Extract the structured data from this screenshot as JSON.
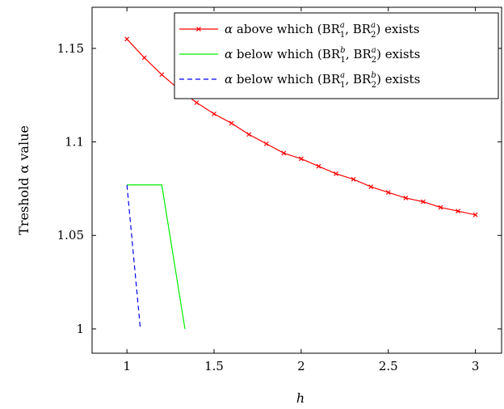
{
  "chart_data": {
    "type": "line",
    "xlabel": "h",
    "ylabel": "Treshold α value",
    "xlim": [
      0.8,
      3.15
    ],
    "ylim": [
      0.987,
      1.172
    ],
    "xticks": [
      1,
      1.5,
      2,
      2.5,
      3
    ],
    "xtick_labels": [
      "1",
      "1.5",
      "2",
      "2.5",
      "3"
    ],
    "yticks": [
      1.0,
      1.05,
      1.1,
      1.15
    ],
    "ytick_labels": [
      "1",
      "1.05",
      "1.1",
      "1.15"
    ],
    "grid": false,
    "legend_position": "top-right",
    "series": [
      {
        "name": "α above which (BR1a, BR2a) exists",
        "color": "#ff0000",
        "style": "solid",
        "marker": "x",
        "x": [
          1.0,
          1.1,
          1.2,
          1.3,
          1.4,
          1.5,
          1.6,
          1.7,
          1.8,
          1.9,
          2.0,
          2.1,
          2.2,
          2.3,
          2.4,
          2.5,
          2.6,
          2.7,
          2.8,
          2.9,
          3.0
        ],
        "y": [
          1.155,
          1.145,
          1.136,
          1.128,
          1.121,
          1.115,
          1.11,
          1.104,
          1.099,
          1.094,
          1.091,
          1.087,
          1.083,
          1.08,
          1.076,
          1.073,
          1.07,
          1.068,
          1.065,
          1.063,
          1.061
        ]
      },
      {
        "name": "α below which (BR1b, BR2a) exists",
        "color": "#00ee00",
        "style": "solid",
        "marker": "none",
        "x": [
          1.0,
          1.2,
          1.333
        ],
        "y": [
          1.077,
          1.077,
          1.0
        ]
      },
      {
        "name": "α below which (BR1a, BR2b) exists",
        "color": "#0000ff",
        "style": "dashed",
        "marker": "none",
        "x": [
          1.0,
          1.077
        ],
        "y": [
          1.077,
          1.0
        ]
      }
    ]
  }
}
